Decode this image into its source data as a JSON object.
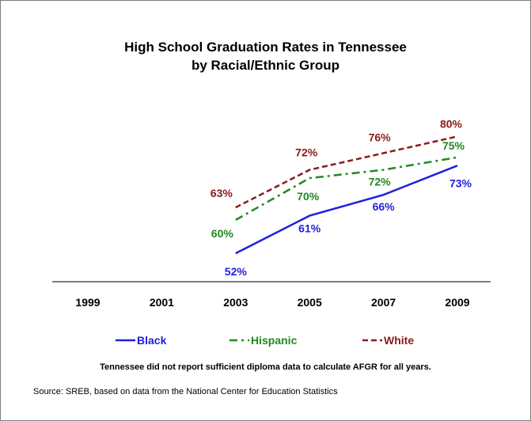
{
  "chart_data": {
    "type": "line",
    "title": "High School Graduation Rates in Tennessee",
    "subtitle": "by Racial/Ethnic Group",
    "x": [
      "1999",
      "2001",
      "2003",
      "2005",
      "2007",
      "2009"
    ],
    "ylim": [
      45,
      85
    ],
    "grid": false,
    "legend_position": "bottom",
    "series": [
      {
        "name": "Black",
        "color": "#1f1fe0",
        "dash": "solid",
        "values": [
          null,
          null,
          52,
          61,
          66,
          73
        ],
        "labels": [
          "",
          "",
          "52%",
          "61%",
          "66%",
          "73%"
        ]
      },
      {
        "name": "Hispanic",
        "color": "#1f8a1f",
        "dash": "dashdot",
        "values": [
          null,
          null,
          60,
          70,
          72,
          75
        ],
        "labels": [
          "",
          "",
          "60%",
          "70%",
          "72%",
          "75%"
        ]
      },
      {
        "name": "White",
        "color": "#8b1a1a",
        "dash": "dashed",
        "values": [
          null,
          null,
          63,
          72,
          76,
          80
        ],
        "labels": [
          "",
          "",
          "63%",
          "72%",
          "76%",
          "80%"
        ]
      }
    ]
  },
  "note": "Tennessee did not report sufficient diploma data to calculate AFGR for all years.",
  "source": "Source: SREB, based on data from the National Center for Education Statistics"
}
